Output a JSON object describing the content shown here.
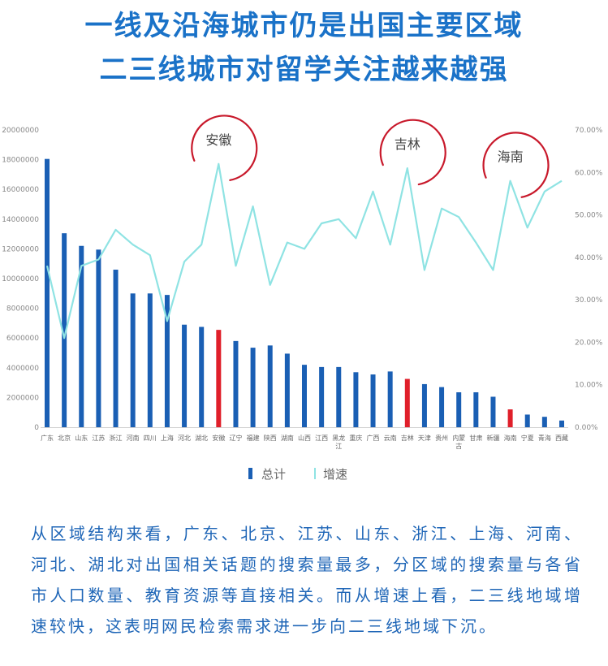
{
  "header": {
    "line1": "一线及沿海城市仍是出国主要区域",
    "line2": "二三线城市对留学关注越来越强"
  },
  "chart_data": {
    "type": "bar",
    "categories": [
      "广东",
      "北京",
      "山东",
      "江苏",
      "浙江",
      "河南",
      "四川",
      "上海",
      "河北",
      "湖北",
      "安徽",
      "辽宁",
      "福建",
      "陕西",
      "湖南",
      "山西",
      "江西",
      "黑龙江",
      "重庆",
      "广西",
      "云南",
      "吉林",
      "天津",
      "贵州",
      "内蒙古",
      "甘肃",
      "新疆",
      "海南",
      "宁夏",
      "青海",
      "西藏"
    ],
    "series": [
      {
        "name": "总计",
        "type": "bar",
        "axis": "left",
        "values": [
          18050000,
          13050000,
          12200000,
          11950000,
          10600000,
          9000000,
          9000000,
          8900000,
          6900000,
          6750000,
          6550000,
          5800000,
          5350000,
          5500000,
          4950000,
          4200000,
          4050000,
          4050000,
          3700000,
          3550000,
          3750000,
          3250000,
          2900000,
          2700000,
          2350000,
          2350000,
          2050000,
          1200000,
          850000,
          700000,
          450000
        ]
      },
      {
        "name": "增速",
        "type": "line",
        "axis": "right",
        "values": [
          0.38,
          0.21,
          0.38,
          0.395,
          0.465,
          0.43,
          0.405,
          0.25,
          0.39,
          0.43,
          0.62,
          0.38,
          0.52,
          0.335,
          0.435,
          0.42,
          0.48,
          0.49,
          0.445,
          0.555,
          0.43,
          0.61,
          0.37,
          0.515,
          0.495,
          0.435,
          0.37,
          0.58,
          0.47,
          0.555,
          0.58
        ]
      }
    ],
    "highlight_categories": [
      "安徽",
      "吉林",
      "海南"
    ],
    "callouts": [
      "安徽",
      "吉林",
      "海南"
    ],
    "left_axis": {
      "min": 0,
      "max": 20000000,
      "ticks": [
        "0",
        "2000000",
        "4000000",
        "6000000",
        "8000000",
        "10000000",
        "12000000",
        "14000000",
        "16000000",
        "18000000",
        "20000000"
      ]
    },
    "right_axis": {
      "min": 0,
      "max": 0.7,
      "ticks": [
        "0.00%",
        "10.00%",
        "20.00%",
        "30.00%",
        "40.00%",
        "50.00%",
        "60.00%",
        "70.00%"
      ]
    },
    "legend": {
      "position": "bottom"
    },
    "colors": {
      "bar": "#1a5fb4",
      "bar_highlight": "#e01f2a",
      "line": "#8fe3e3",
      "circle": "#c8192b",
      "tick": "#888888"
    }
  },
  "paragraph": "从区域结构来看，广东、北京、江苏、山东、浙江、上海、河南、河北、湖北对出国相关话题的搜索量最多，分区域的搜索量与各省市人口数量、教育资源等直接相关。而从增速上看，二三线地域增速较快，这表明网民检索需求进一步向二三线地域下沉。"
}
